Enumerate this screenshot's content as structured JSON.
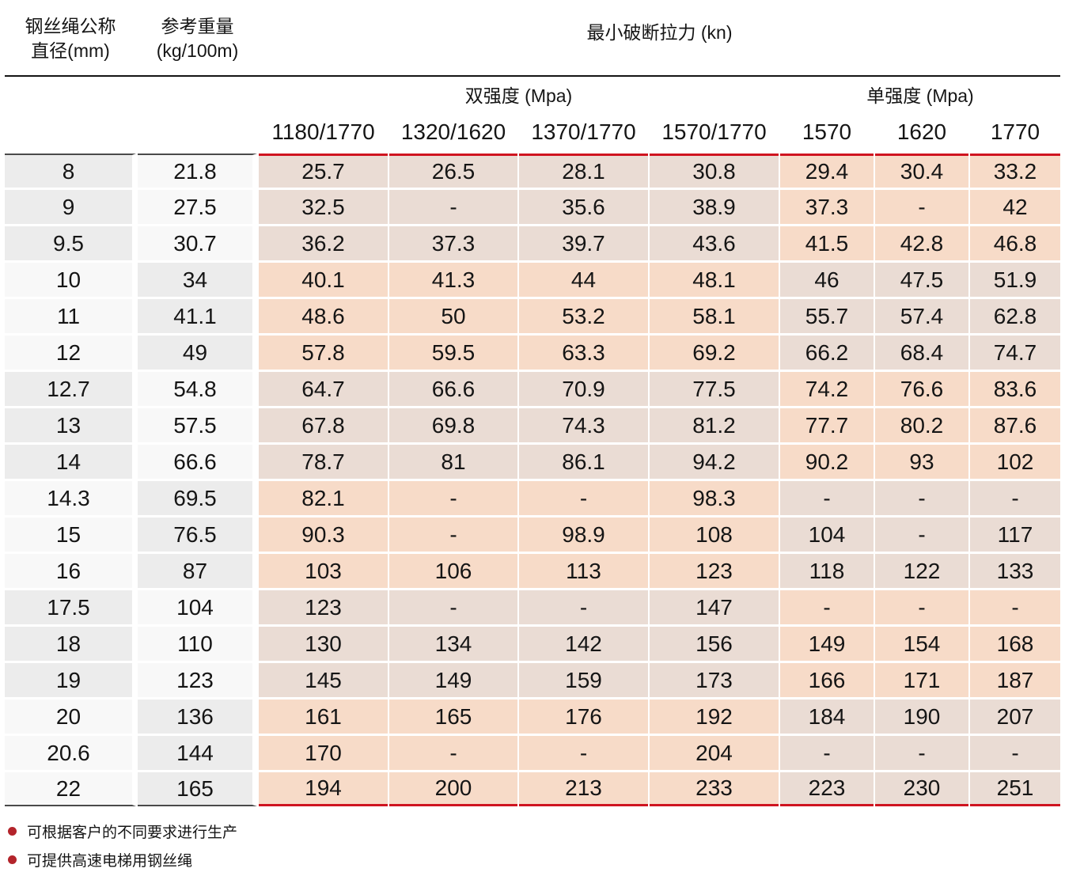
{
  "header": {
    "col1_line1": "钢丝绳公称",
    "col1_line2": "直径(mm)",
    "col2_line1": "参考重量",
    "col2_line2": "(kg/100m)",
    "main_title": "最小破断拉力 (kn)",
    "group_double": "双强度 (Mpa)",
    "group_single": "单强度 (Mpa)",
    "columns": [
      "1180/1770",
      "1320/1620",
      "1370/1770",
      "1570/1770",
      "1570",
      "1620",
      "1770"
    ]
  },
  "table": {
    "rows": [
      {
        "diameter": "8",
        "weight": "21.8",
        "values": [
          "25.7",
          "26.5",
          "28.1",
          "30.8",
          "29.4",
          "30.4",
          "33.2"
        ]
      },
      {
        "diameter": "9",
        "weight": "27.5",
        "values": [
          "32.5",
          "-",
          "35.6",
          "38.9",
          "37.3",
          "-",
          "42"
        ]
      },
      {
        "diameter": "9.5",
        "weight": "30.7",
        "values": [
          "36.2",
          "37.3",
          "39.7",
          "43.6",
          "41.5",
          "42.8",
          "46.8"
        ]
      },
      {
        "diameter": "10",
        "weight": "34",
        "values": [
          "40.1",
          "41.3",
          "44",
          "48.1",
          "46",
          "47.5",
          "51.9"
        ]
      },
      {
        "diameter": "11",
        "weight": "41.1",
        "values": [
          "48.6",
          "50",
          "53.2",
          "58.1",
          "55.7",
          "57.4",
          "62.8"
        ]
      },
      {
        "diameter": "12",
        "weight": "49",
        "values": [
          "57.8",
          "59.5",
          "63.3",
          "69.2",
          "66.2",
          "68.4",
          "74.7"
        ]
      },
      {
        "diameter": "12.7",
        "weight": "54.8",
        "values": [
          "64.7",
          "66.6",
          "70.9",
          "77.5",
          "74.2",
          "76.6",
          "83.6"
        ]
      },
      {
        "diameter": "13",
        "weight": "57.5",
        "values": [
          "67.8",
          "69.8",
          "74.3",
          "81.2",
          "77.7",
          "80.2",
          "87.6"
        ]
      },
      {
        "diameter": "14",
        "weight": "66.6",
        "values": [
          "78.7",
          "81",
          "86.1",
          "94.2",
          "90.2",
          "93",
          "102"
        ]
      },
      {
        "diameter": "14.3",
        "weight": "69.5",
        "values": [
          "82.1",
          "-",
          "-",
          "98.3",
          "-",
          "-",
          "-"
        ]
      },
      {
        "diameter": "15",
        "weight": "76.5",
        "values": [
          "90.3",
          "-",
          "98.9",
          "108",
          "104",
          "-",
          "117"
        ]
      },
      {
        "diameter": "16",
        "weight": "87",
        "values": [
          "103",
          "106",
          "113",
          "123",
          "118",
          "122",
          "133"
        ]
      },
      {
        "diameter": "17.5",
        "weight": "104",
        "values": [
          "123",
          "-",
          "-",
          "147",
          "-",
          "-",
          "-"
        ]
      },
      {
        "diameter": "18",
        "weight": "110",
        "values": [
          "130",
          "134",
          "142",
          "156",
          "149",
          "154",
          "168"
        ]
      },
      {
        "diameter": "19",
        "weight": "123",
        "values": [
          "145",
          "149",
          "159",
          "173",
          "166",
          "171",
          "187"
        ]
      },
      {
        "diameter": "20",
        "weight": "136",
        "values": [
          "161",
          "165",
          "176",
          "192",
          "184",
          "190",
          "207"
        ]
      },
      {
        "diameter": "20.6",
        "weight": "144",
        "values": [
          "170",
          "-",
          "-",
          "204",
          "-",
          "-",
          "-"
        ]
      },
      {
        "diameter": "22",
        "weight": "165",
        "values": [
          "194",
          "200",
          "213",
          "233",
          "223",
          "230",
          "251"
        ]
      }
    ]
  },
  "notes": [
    {
      "text": "可根据客户的不同要求进行生产"
    },
    {
      "text": "可提供高速电梯用钢丝绳"
    }
  ],
  "colors": {
    "accent_red": "#cf1420",
    "dark_rule": "#141414",
    "border_gray": "#4a4a4a",
    "bullet_red": "#b3242b",
    "cell_gray": "#ececec",
    "cell_light": "#f8f8f8",
    "cell_warm_peach": "#f7dbc8",
    "cell_muted_tan": "#eadcd4"
  }
}
